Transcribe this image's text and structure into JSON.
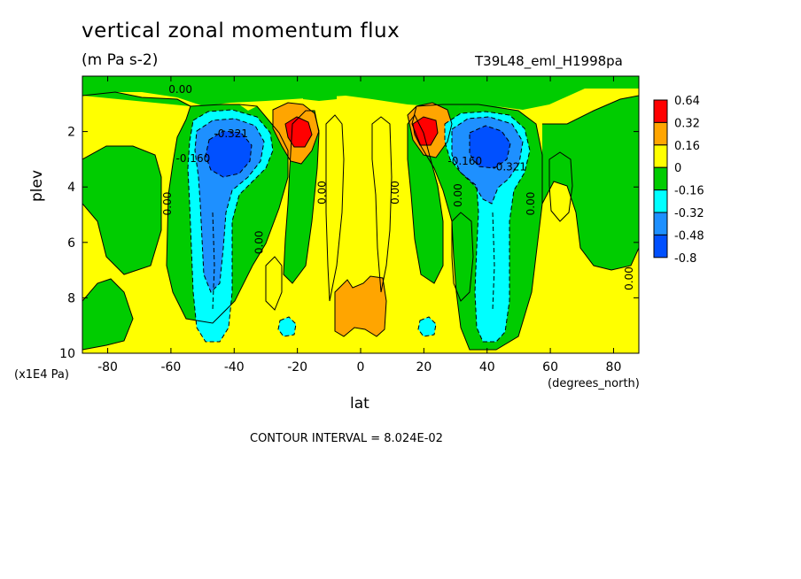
{
  "figure": {
    "title": "vertical zonal momentum flux",
    "units": "(m Pa s-2)",
    "run_id": "T39L48_eml_H1998pa",
    "contour_interval": "CONTOUR INTERVAL = 8.024E-02"
  },
  "chart_data": {
    "type": "heatmap",
    "xlabel": "lat",
    "x_unit_label": "(degrees_north)",
    "ylabel": "plev",
    "y_unit_label": "(x1E4 Pa)",
    "xlim": [
      -88,
      88
    ],
    "ylim": [
      10,
      0
    ],
    "x_ticks": [
      -80,
      -60,
      -40,
      -20,
      0,
      20,
      40,
      60,
      80
    ],
    "y_ticks": [
      2,
      4,
      6,
      8,
      10
    ],
    "colorbar": {
      "labels": [
        "0.64",
        "0.32",
        "0.16",
        "0",
        "-0.16",
        "-0.32",
        "-0.48",
        "-0.8"
      ],
      "colors": [
        "#ff0000",
        "#ffa500",
        "#ffff00",
        "#00cc00",
        "#00ffff",
        "#1e90ff",
        "#0050ff"
      ]
    },
    "contour_labels": [
      {
        "text": "0.00",
        "lon": -57,
        "lev": 0.6
      },
      {
        "text": "-0.321",
        "lon": -41,
        "lev": 2.2
      },
      {
        "text": "-0.160",
        "lon": -53,
        "lev": 3.1
      },
      {
        "text": "0.00",
        "lon": -60,
        "lev": 4.6
      },
      {
        "text": "0.00",
        "lon": -31,
        "lev": 6.0
      },
      {
        "text": "0.00",
        "lon": -11,
        "lev": 4.2
      },
      {
        "text": "0.00",
        "lon": 12,
        "lev": 4.2
      },
      {
        "text": "-0.160",
        "lon": 33,
        "lev": 3.2
      },
      {
        "text": "0.00",
        "lon": 32,
        "lev": 4.3
      },
      {
        "text": "-0.321",
        "lon": 47,
        "lev": 3.4
      },
      {
        "text": "0.00",
        "lon": 55,
        "lev": 4.6
      },
      {
        "text": "0.00",
        "lon": 86,
        "lev": 7.3
      }
    ],
    "features": [
      {
        "name": "NH subtropical positive core",
        "lon": 20,
        "lev": 2.2,
        "value": 0.64
      },
      {
        "name": "SH subtropical positive core",
        "lon": -18,
        "lev": 2.2,
        "value": 0.64
      },
      {
        "name": "SH midlatitude negative core",
        "lon": -43,
        "lev": 3.0,
        "value": -0.8
      },
      {
        "name": "NH midlatitude negative core",
        "lon": 42,
        "lev": 2.6,
        "value": -0.8
      },
      {
        "name": "equatorial lower positive",
        "lon": 0,
        "lev": 8.5,
        "value": 0.16
      }
    ]
  }
}
